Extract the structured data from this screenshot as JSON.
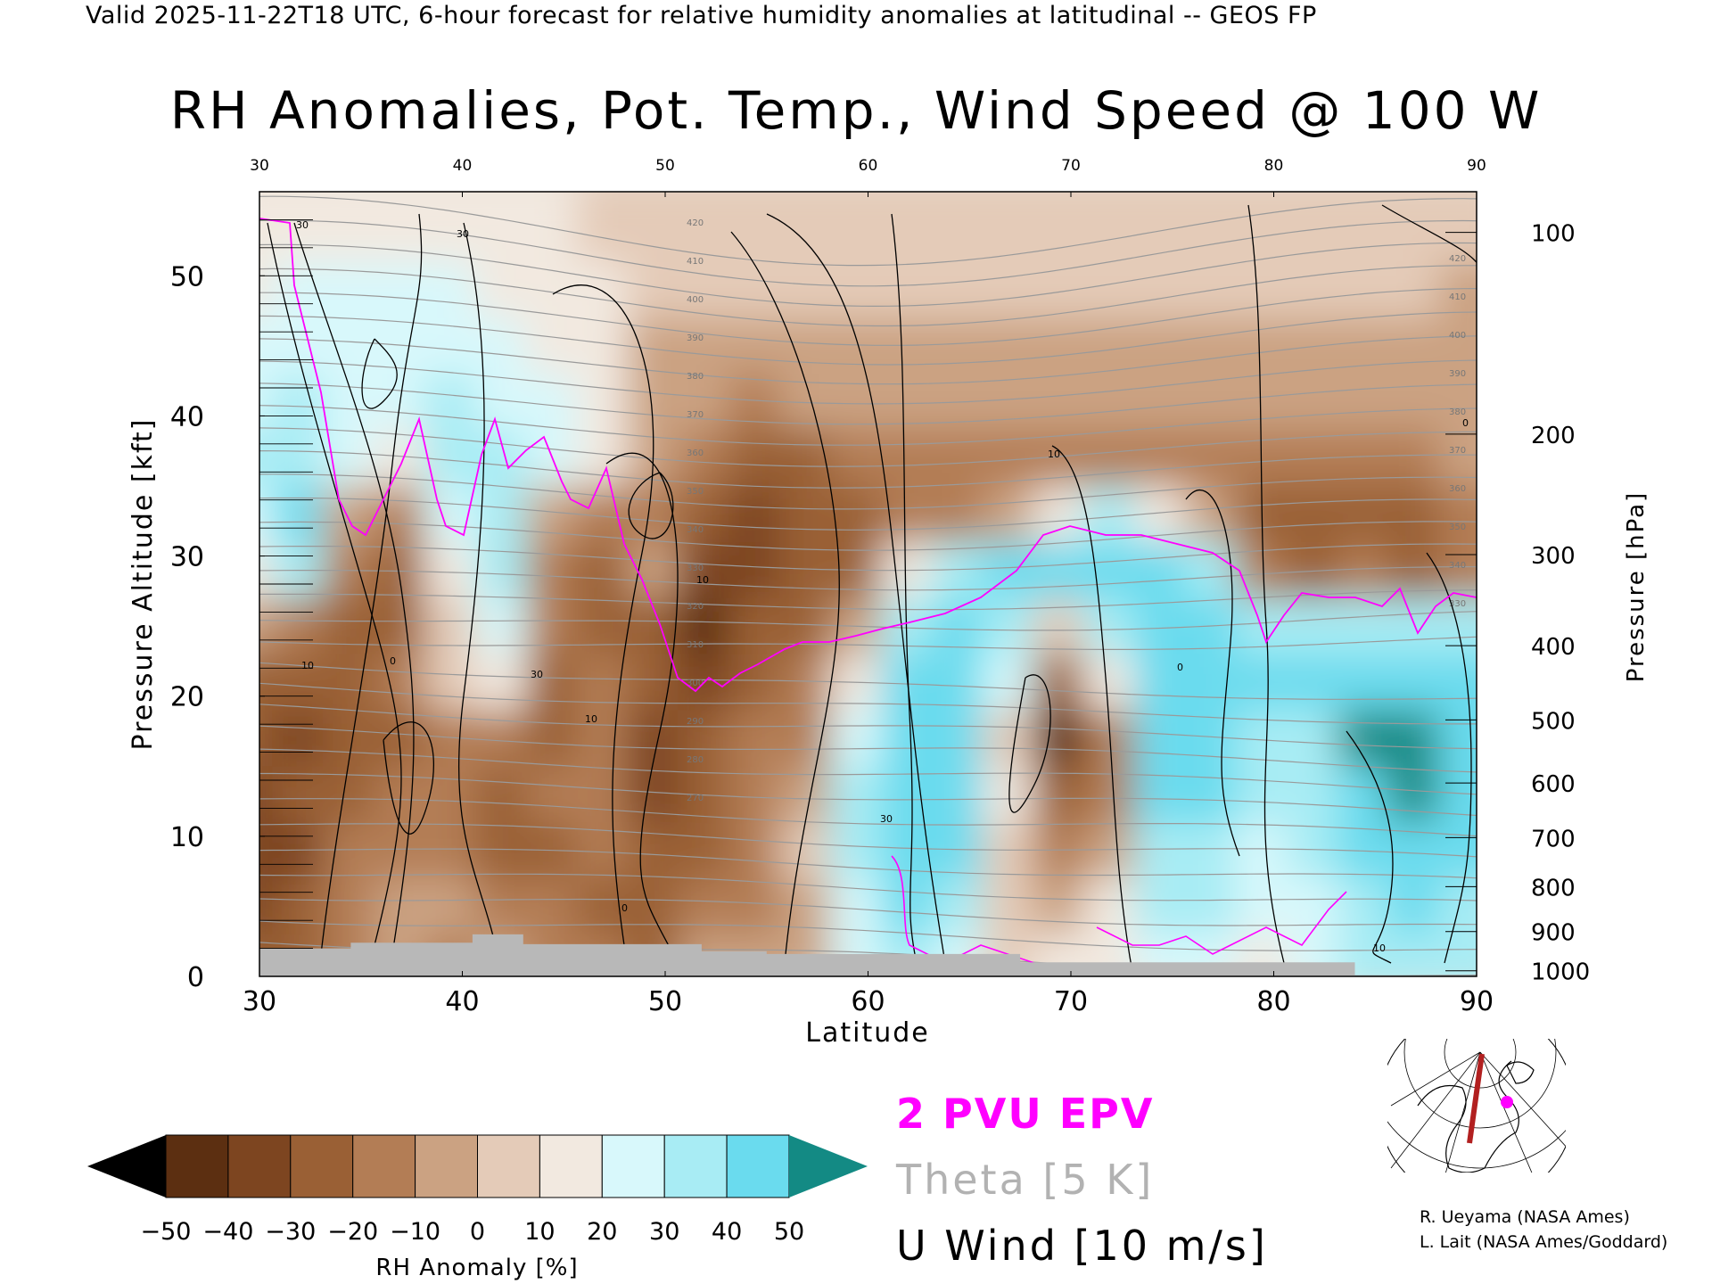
{
  "header": {
    "valid_line": "Valid 2025-11-22T18 UTC, 6-hour forecast for relative humidity anomalies at latitudinal -- GEOS FP",
    "title": "RH Anomalies, Pot. Temp., Wind Speed @ 100 W"
  },
  "legend": {
    "epv": "2 PVU EPV",
    "theta": "Theta [5 K]",
    "u_wind": "U Wind [10 m/s]"
  },
  "colorbar": {
    "label": "RH Anomaly [%]",
    "ticks": [
      "−50",
      "−40",
      "−30",
      "−20",
      "−10",
      "0",
      "10",
      "20",
      "30",
      "40",
      "50"
    ],
    "colors": [
      "#3a1a06",
      "#5c2f11",
      "#7d4520",
      "#9a6035",
      "#b37d55",
      "#cba282",
      "#e4cbb8",
      "#f2e9e0",
      "#d8f8fb",
      "#a8ecf4",
      "#6adbee",
      "#2cc3e6",
      "#0a98c2"
    ],
    "under_color": "#000000",
    "over_color": "#138a84"
  },
  "credits": [
    "R. Ueyama (NASA Ames)",
    "L. Lait (NASA Ames/Goddard)"
  ],
  "chart_data": {
    "type": "heatmap",
    "title": "RH Anomalies, Pot. Temp., Wind Speed @ 100 W",
    "xlabel": "Latitude",
    "ylabel_left": "Pressure Altitude [kft]",
    "ylabel_right": "Pressure [hPa]",
    "xlim": [
      30,
      90
    ],
    "ylim": [
      0,
      56
    ],
    "x_ticks": [
      30,
      40,
      50,
      60,
      70,
      80,
      90
    ],
    "top_ticks": [
      30,
      40,
      50,
      60,
      70,
      80,
      90
    ],
    "y_ticks": [
      0,
      10,
      20,
      30,
      40,
      50
    ],
    "pressure_ticks": [
      {
        "label": "100",
        "kft": 53.1
      },
      {
        "label": "200",
        "kft": 38.7
      },
      {
        "label": "300",
        "kft": 30.1
      },
      {
        "label": "400",
        "kft": 23.6
      },
      {
        "label": "500",
        "kft": 18.3
      },
      {
        "label": "600",
        "kft": 13.8
      },
      {
        "label": "700",
        "kft": 9.9
      },
      {
        "label": "800",
        "kft": 6.4
      },
      {
        "label": "900",
        "kft": 3.2
      },
      {
        "label": "1000",
        "kft": 0.4
      }
    ],
    "rh_anomaly_lats": [
      30,
      32.5,
      35,
      37.5,
      40,
      42.5,
      45,
      47.5,
      50,
      52.5,
      55,
      57.5,
      60,
      62.5,
      65,
      67.5,
      70,
      72.5,
      75,
      77.5,
      80,
      82.5,
      85,
      87.5,
      90
    ],
    "rh_anomaly_levels_kft": [
      2,
      6,
      10,
      14,
      18,
      22,
      26,
      30,
      34,
      38,
      42,
      46,
      50,
      54
    ],
    "rh_anomaly_values": [
      [
        -30,
        -25,
        -15,
        -10,
        -15,
        -10,
        -15,
        -20,
        -25,
        -10,
        -10,
        -5,
        20,
        30,
        25,
        5,
        10,
        15,
        20,
        25,
        10,
        20,
        30,
        35,
        30
      ],
      [
        -35,
        -30,
        -15,
        -5,
        -10,
        -15,
        -20,
        -25,
        -25,
        -20,
        -15,
        -5,
        25,
        40,
        35,
        0,
        -10,
        10,
        30,
        30,
        20,
        25,
        35,
        40,
        35
      ],
      [
        -40,
        -35,
        -20,
        -15,
        -15,
        -25,
        -25,
        -20,
        -30,
        -25,
        -20,
        0,
        30,
        45,
        40,
        5,
        -20,
        -5,
        35,
        35,
        25,
        30,
        40,
        50,
        40
      ],
      [
        -35,
        -30,
        -25,
        -20,
        -20,
        -30,
        -20,
        -15,
        -35,
        -25,
        -15,
        -10,
        30,
        50,
        45,
        10,
        -30,
        -15,
        40,
        40,
        30,
        35,
        50,
        55,
        45
      ],
      [
        -30,
        -35,
        -30,
        -25,
        -15,
        -20,
        -30,
        -20,
        -35,
        -30,
        -20,
        -15,
        25,
        50,
        50,
        5,
        -45,
        -20,
        40,
        45,
        35,
        35,
        55,
        55,
        50
      ],
      [
        -25,
        -30,
        -30,
        -20,
        0,
        15,
        -25,
        -20,
        -30,
        -35,
        -25,
        -20,
        15,
        45,
        45,
        20,
        -30,
        10,
        45,
        45,
        40,
        40,
        45,
        45,
        40
      ],
      [
        -10,
        -20,
        -25,
        -25,
        5,
        25,
        -15,
        -25,
        -25,
        -45,
        -30,
        -25,
        -10,
        30,
        40,
        35,
        5,
        35,
        40,
        40,
        30,
        35,
        30,
        30,
        30
      ],
      [
        15,
        35,
        -20,
        -25,
        10,
        30,
        -20,
        -25,
        -10,
        -35,
        -35,
        -30,
        -25,
        10,
        30,
        40,
        40,
        45,
        45,
        35,
        -20,
        -25,
        -20,
        -25,
        -15
      ],
      [
        25,
        40,
        -10,
        -20,
        20,
        30,
        -5,
        -15,
        -15,
        -30,
        -35,
        -30,
        -30,
        -20,
        -20,
        -5,
        15,
        30,
        15,
        -5,
        -30,
        -30,
        -25,
        -25,
        -20
      ],
      [
        30,
        35,
        20,
        10,
        30,
        30,
        20,
        10,
        -5,
        -20,
        -25,
        -25,
        -20,
        -20,
        -15,
        -20,
        -20,
        -15,
        -15,
        -20,
        -20,
        -15,
        -15,
        -15,
        -10
      ],
      [
        25,
        30,
        20,
        25,
        30,
        25,
        20,
        15,
        -5,
        -10,
        -15,
        -10,
        -10,
        -10,
        -10,
        -10,
        -10,
        -10,
        -10,
        -10,
        -10,
        -10,
        -10,
        -10,
        -5
      ],
      [
        20,
        25,
        25,
        20,
        25,
        20,
        15,
        15,
        -5,
        -5,
        -5,
        -5,
        -5,
        -5,
        -5,
        -5,
        -5,
        -5,
        -5,
        -5,
        -5,
        -5,
        -5,
        -5,
        -5
      ],
      [
        15,
        20,
        20,
        20,
        20,
        15,
        10,
        10,
        0,
        0,
        0,
        0,
        0,
        0,
        0,
        0,
        0,
        0,
        0,
        0,
        0,
        0,
        0,
        0,
        -5
      ],
      [
        15,
        15,
        15,
        15,
        15,
        10,
        10,
        5,
        0,
        0,
        0,
        0,
        0,
        0,
        0,
        0,
        0,
        0,
        0,
        0,
        0,
        0,
        0,
        0,
        0
      ]
    ],
    "theta_contour_labels": [
      "420",
      "410",
      "400",
      "390",
      "380",
      "370",
      "360",
      "350",
      "340",
      "330",
      "320",
      "310",
      "300",
      "290",
      "280",
      "270"
    ],
    "u_wind_contour_labels": [
      "30",
      "10",
      "0",
      "30",
      "10",
      "0",
      "10",
      "30",
      "10",
      "0",
      "10",
      "0",
      "30"
    ],
    "terrain_kft": [
      [
        30,
        2.0
      ],
      [
        34.5,
        2.0
      ],
      [
        34.5,
        2.4
      ],
      [
        40.5,
        2.4
      ],
      [
        40.5,
        3.0
      ],
      [
        43,
        3.0
      ],
      [
        43,
        2.3
      ],
      [
        51.8,
        2.3
      ],
      [
        51.8,
        1.8
      ],
      [
        55,
        1.8
      ],
      [
        55,
        1.6
      ],
      [
        67.5,
        1.6
      ],
      [
        67.5,
        1.0
      ],
      [
        84,
        1.0
      ],
      [
        84,
        0.0
      ],
      [
        90,
        0.0
      ]
    ]
  }
}
